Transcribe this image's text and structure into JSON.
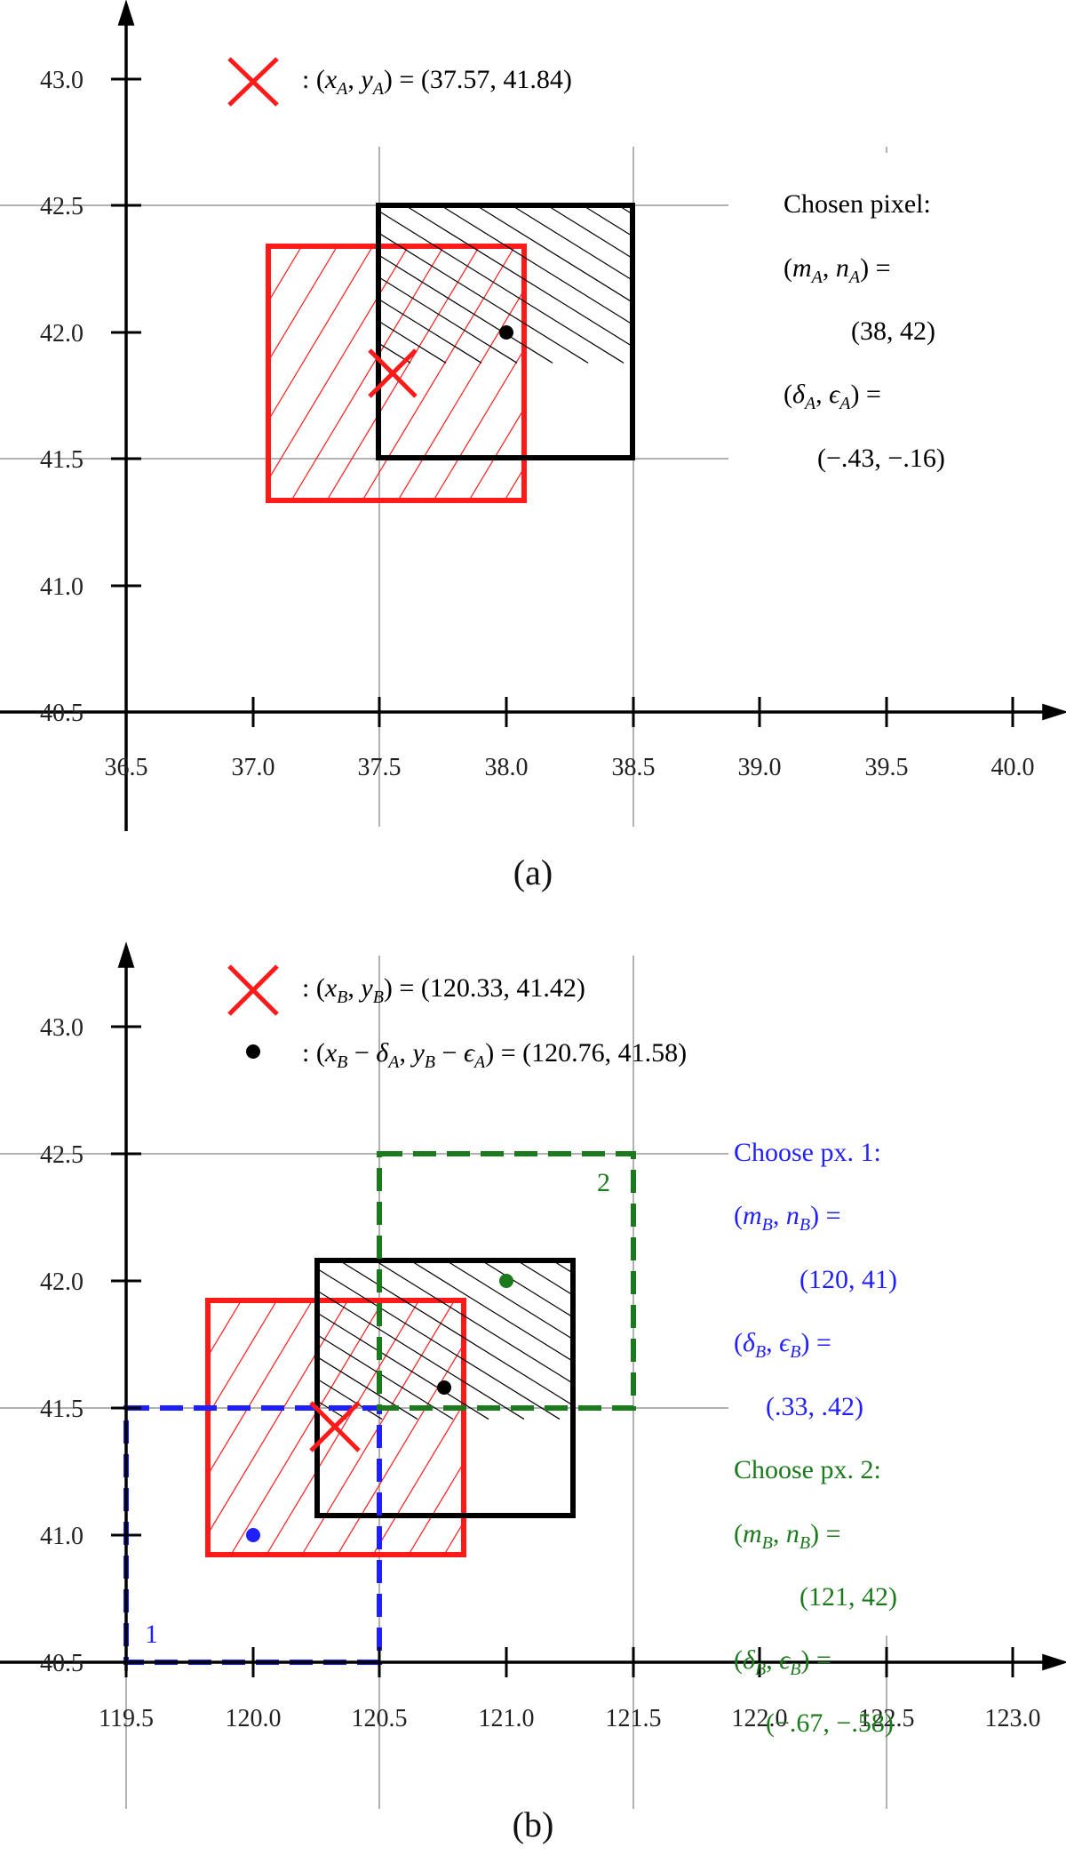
{
  "panel_a": {
    "caption": "(a)",
    "x_ticks": [
      "36.5",
      "37.0",
      "37.5",
      "38.0",
      "38.5",
      "39.0",
      "39.5",
      "40.0"
    ],
    "y_ticks": [
      "40.5",
      "41.0",
      "41.5",
      "42.0",
      "42.5",
      "43.0"
    ],
    "legend": {
      "cross": [
        ": (",
        "x",
        "A",
        ",  ",
        "y",
        "A",
        ") = (37.57,  41.84)"
      ]
    },
    "info": {
      "title": "Chosen pixel:",
      "mn_label": [
        "(",
        "m",
        "A",
        ",  ",
        "n",
        "A",
        ") ="
      ],
      "mn_value": "(38,  42)",
      "de_label": [
        "(",
        "δ",
        "A",
        ",  ",
        "ϵ",
        "A",
        ") ="
      ],
      "de_value": "(−.43,  −.16)"
    },
    "points": {
      "cross": [
        37.57,
        41.84
      ],
      "dot": [
        38.0,
        42.0
      ]
    }
  },
  "panel_b": {
    "caption": "(b)",
    "x_ticks": [
      "119.5",
      "120.0",
      "120.5",
      "121.0",
      "121.5",
      "122.0",
      "122.5",
      "123.0"
    ],
    "y_ticks": [
      "40.5",
      "41.0",
      "41.5",
      "42.0",
      "42.5",
      "43.0"
    ],
    "legend": {
      "cross": [
        ": (",
        "x",
        "B",
        ",  ",
        "y",
        "B",
        ") = (120.33,  41.42)"
      ],
      "dot": [
        ": (",
        "x",
        "B",
        " − ",
        "δ",
        "A",
        ",  ",
        "y",
        "B",
        " − ",
        "ϵ",
        "A",
        ") = (120.76,  41.58)"
      ]
    },
    "box_labels": {
      "one": "1",
      "two": "2"
    },
    "choice1": {
      "title": "Choose px.  1:",
      "mn_label": [
        "(",
        "m",
        "B",
        ",  ",
        "n",
        "B",
        ") ="
      ],
      "mn_value": "(120,  41)",
      "de_label": [
        "(",
        "δ",
        "B",
        ",  ",
        "ϵ",
        "B",
        ") ="
      ],
      "de_value": "(.33,  .42)",
      "color": "#1f1fff"
    },
    "choice2": {
      "title": "Choose px.  2:",
      "mn_label": [
        "(",
        "m",
        "B",
        ",  ",
        "n",
        "B",
        ") ="
      ],
      "mn_value": "(121,  42)",
      "de_label": [
        "(",
        "δ",
        "B",
        ",  ",
        "ϵ",
        "B",
        ") ="
      ],
      "de_value": "(−.67,  −.58)",
      "color": "#1b7a1b"
    },
    "points": {
      "cross": [
        120.33,
        41.42
      ],
      "dot": [
        120.76,
        41.58
      ],
      "blue_dot": [
        120.0,
        41.0
      ],
      "green_dot": [
        121.0,
        42.0
      ]
    }
  },
  "colors": {
    "red": "#ff1a1a",
    "black": "#000000",
    "blue": "#1f1fff",
    "green": "#1b7a1b",
    "grid": "#999999"
  }
}
